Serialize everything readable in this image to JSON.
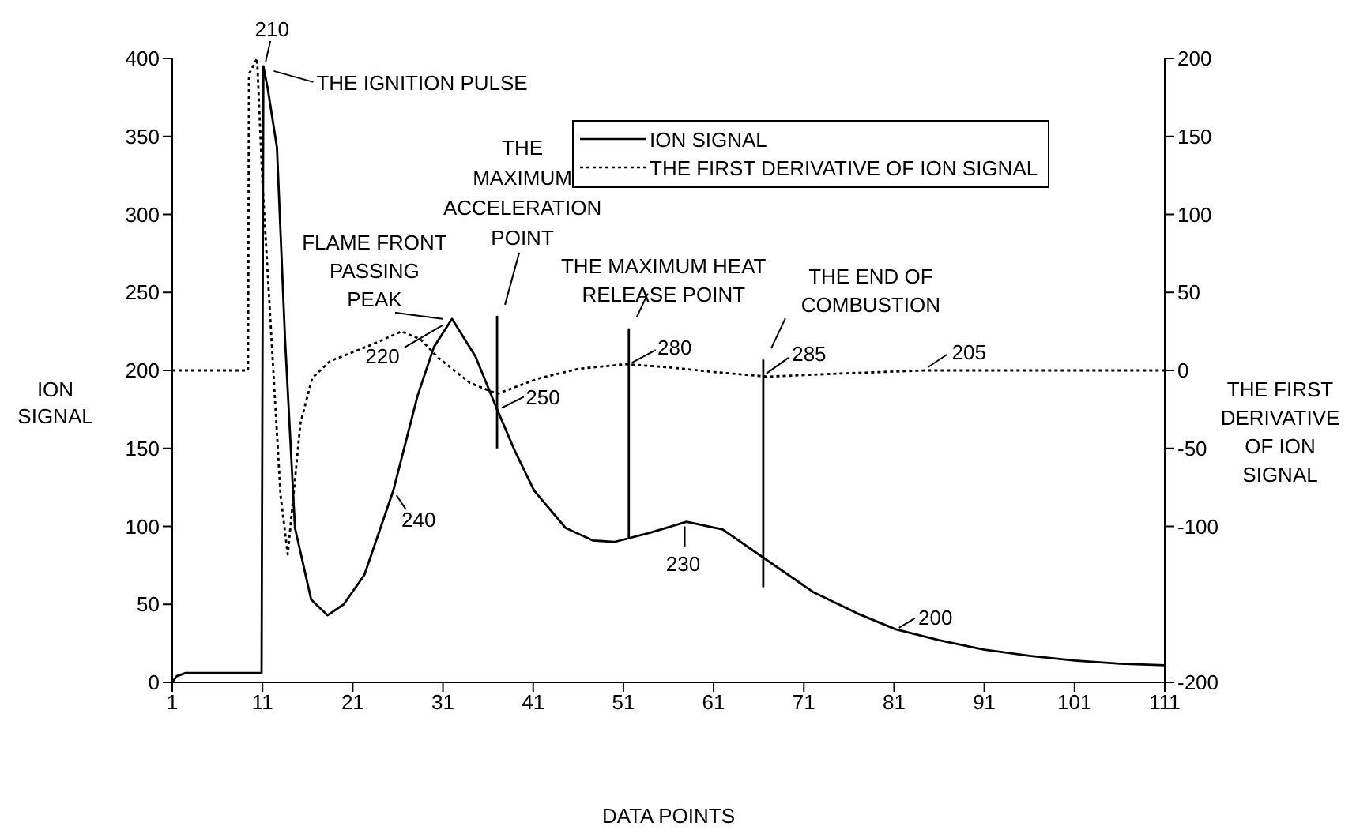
{
  "chart_data": {
    "type": "line",
    "xlabel": "DATA POINTS",
    "ylabel": "ION SIGNAL",
    "y2label": "THE FIRST DERIVATIVE OF ION SIGNAL",
    "xlim": [
      1,
      111
    ],
    "xticks": [
      1,
      11,
      21,
      31,
      41,
      51,
      61,
      71,
      81,
      91,
      101,
      111
    ],
    "ylim": [
      0,
      400
    ],
    "yticks": [
      0,
      50,
      100,
      150,
      200,
      250,
      300,
      350,
      400
    ],
    "y2lim": [
      -200,
      200
    ],
    "y2ticks": [
      -200,
      -100,
      -50,
      0,
      50,
      100,
      150,
      200
    ],
    "grid": false,
    "legend": "top right",
    "marker": "none",
    "series": [
      {
        "name": "ION SIGNAL",
        "type": "line",
        "color": "#000000",
        "line_style": "solid",
        "x": [
          1,
          1.5,
          2.5,
          10.9,
          11.1,
          11.6,
          12.6,
          13.5,
          14.6,
          16.4,
          18.2,
          20,
          22.3,
          25.5,
          28.2,
          30,
          32,
          34.6,
          37,
          39,
          41.1,
          44.6,
          47.6,
          50,
          54,
          58,
          62,
          66.5,
          72,
          77,
          81.2,
          86,
          91,
          96,
          101,
          106,
          111
        ],
        "values": [
          0,
          4,
          6,
          6,
          395,
          380,
          343,
          220,
          99,
          53,
          43,
          50,
          69,
          123,
          184,
          215,
          233,
          209,
          175,
          148,
          123,
          99,
          91,
          90,
          96,
          103,
          98,
          80,
          58,
          44,
          34,
          27,
          21,
          17,
          14,
          12,
          11
        ]
      },
      {
        "name": "THE FIRST DERIVATIVE OF ION SIGNAL",
        "type": "line",
        "axis": "y2",
        "color": "#000000",
        "line_style": "dotted",
        "x": [
          1,
          9.4,
          9.5,
          10.4,
          11,
          12,
          13,
          13.8,
          15.2,
          16.5,
          18.5,
          22.9,
          26.4,
          28.5,
          30.5,
          34,
          37,
          41.7,
          46,
          51.3,
          56,
          61,
          67,
          75,
          84.4,
          111
        ],
        "values": [
          0,
          0,
          190,
          200,
          120,
          20,
          -80,
          -118,
          -34,
          -5,
          6,
          16,
          25,
          20,
          8,
          -8,
          -15,
          -5,
          1,
          4,
          2,
          -1,
          -4,
          -2,
          0,
          0
        ]
      },
      {
        "type": "line",
        "color": "#000000",
        "line_style": "solid",
        "x": [
          37,
          37
        ],
        "values": [
          235,
          150
        ]
      },
      {
        "type": "line",
        "color": "#000000",
        "line_style": "solid",
        "x": [
          51.6,
          51.6
        ],
        "values": [
          227,
          93
        ]
      },
      {
        "type": "line",
        "color": "#000000",
        "line_style": "solid",
        "x": [
          66.5,
          66.5
        ],
        "values": [
          207,
          61
        ]
      }
    ],
    "annotations": [
      {
        "text": "210",
        "x": 11,
        "y": 395
      },
      {
        "text": "THE IGNITION PULSE",
        "x": 11.2,
        "y": 395
      },
      {
        "text": "FLAME FRONT PASSING PEAK",
        "x": 32,
        "y": 233
      },
      {
        "text": "220",
        "x": 32,
        "y": 233
      },
      {
        "text": "240",
        "x": 25.5,
        "y": 123
      },
      {
        "text": "THE MAXIMUM ACCELERATION POINT",
        "x": 37,
        "y": 235
      },
      {
        "text": "250",
        "x": 37,
        "y": 175
      },
      {
        "text": "THE MAXIMUM HEAT RELEASE POINT",
        "x": 51.6,
        "y": 227
      },
      {
        "text": "280",
        "x": 51.6,
        "y": 204
      },
      {
        "text": "THE END OF COMBUSTION",
        "x": 66.5,
        "y": 207
      },
      {
        "text": "285",
        "x": 66.5,
        "y": 196
      },
      {
        "text": "230",
        "x": 57.8,
        "y": 103
      },
      {
        "text": "200",
        "x": 81.2,
        "y": 34
      },
      {
        "text": "205",
        "x": 84.4,
        "y": 200
      }
    ]
  }
}
